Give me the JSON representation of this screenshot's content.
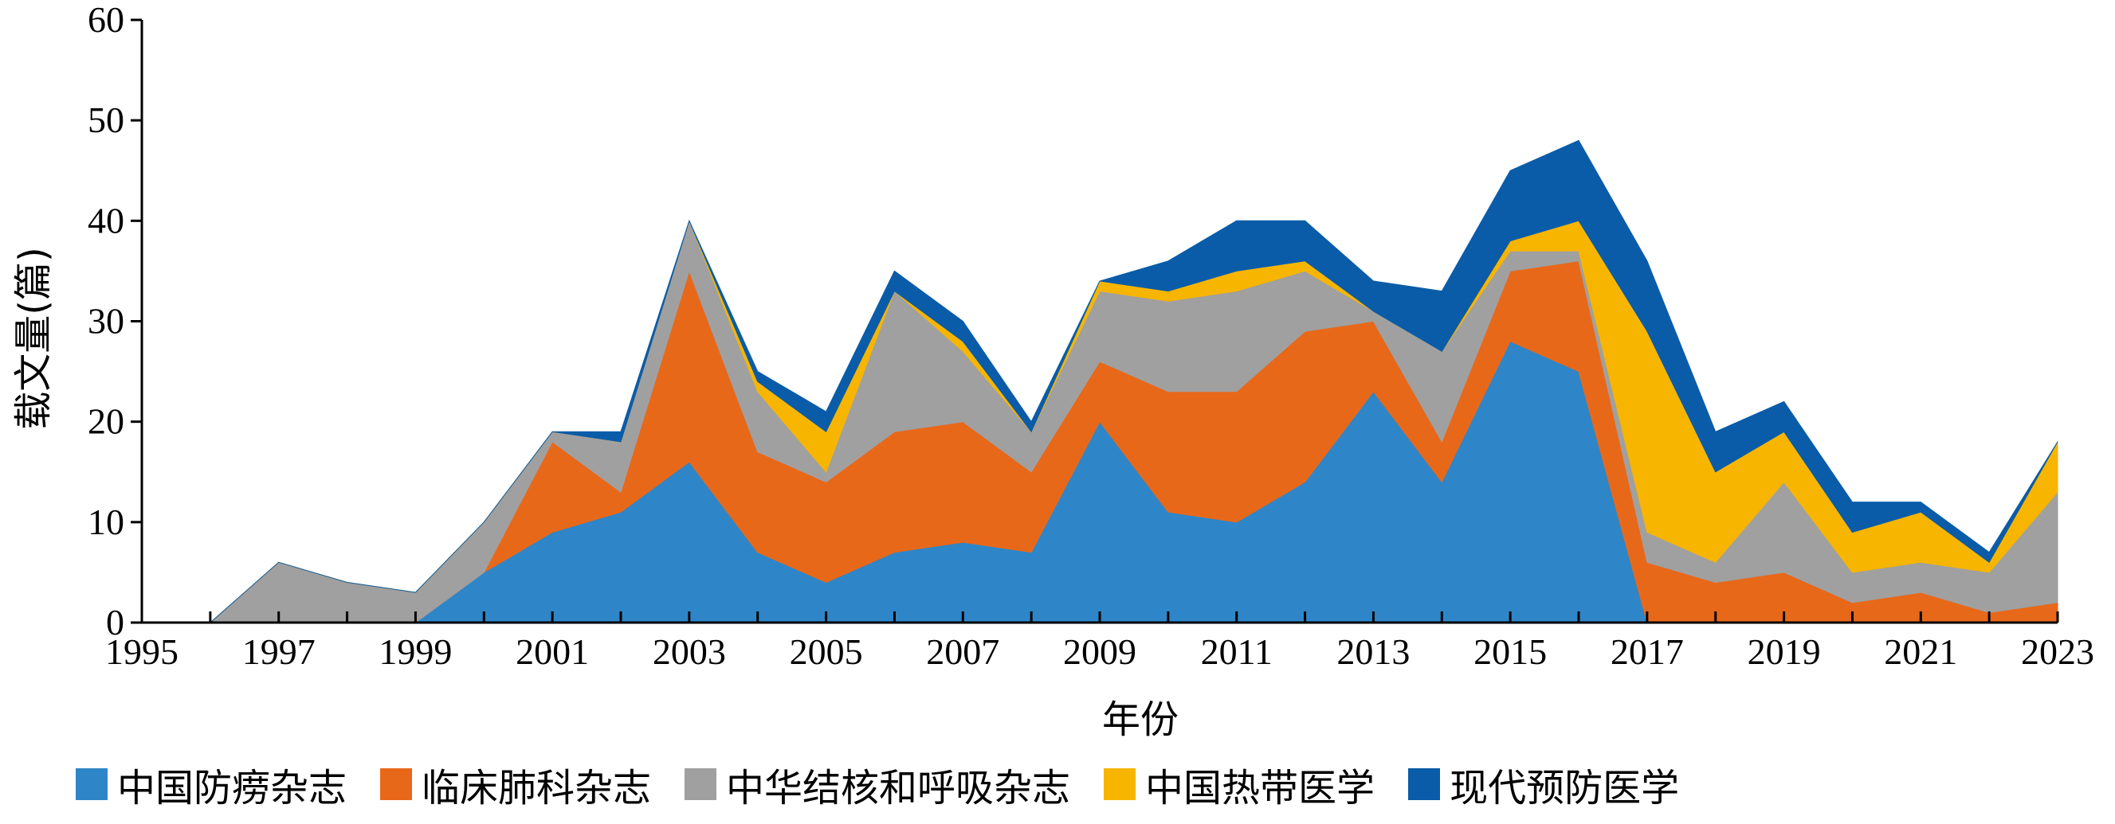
{
  "chart_data": {
    "type": "area",
    "stacked": true,
    "xlabel": "年份",
    "ylabel": "载文量(篇)",
    "ylim": [
      0,
      60
    ],
    "yticks": [
      0,
      10,
      20,
      30,
      40,
      50,
      60
    ],
    "xlim": [
      1995,
      2023
    ],
    "xticks": [
      1995,
      1997,
      1999,
      2001,
      2003,
      2005,
      2007,
      2009,
      2011,
      2013,
      2015,
      2017,
      2019,
      2021,
      2023
    ],
    "grid": false,
    "legend_position": "bottom",
    "x": [
      1996,
      1997,
      1998,
      1999,
      2000,
      2001,
      2002,
      2003,
      2004,
      2005,
      2006,
      2007,
      2008,
      2009,
      2010,
      2011,
      2012,
      2013,
      2014,
      2015,
      2016,
      2017,
      2018,
      2019,
      2020,
      2021,
      2022,
      2023
    ],
    "series": [
      {
        "name": "中国防痨杂志",
        "color": "#2e86c8",
        "values": [
          0,
          0,
          0,
          0,
          5,
          9,
          11,
          16,
          7,
          4,
          7,
          8,
          7,
          20,
          11,
          10,
          14,
          23,
          14,
          28,
          25,
          0,
          0,
          0,
          0,
          0,
          0,
          0
        ]
      },
      {
        "name": "临床肺科杂志",
        "color": "#e8681a",
        "values": [
          0,
          0,
          0,
          0,
          0,
          9,
          2,
          19,
          10,
          10,
          12,
          12,
          8,
          6,
          12,
          13,
          15,
          7,
          4,
          7,
          11,
          6,
          4,
          5,
          2,
          3,
          1,
          2
        ]
      },
      {
        "name": "中华结核和呼吸杂志",
        "color": "#a0a0a0",
        "values": [
          0,
          6,
          4,
          3,
          5,
          1,
          5,
          5,
          6,
          1,
          14,
          7,
          4,
          7,
          9,
          10,
          6,
          1,
          9,
          2,
          1,
          3,
          2,
          9,
          3,
          3,
          4,
          11
        ]
      },
      {
        "name": "中国热带医学",
        "color": "#f7b500",
        "values": [
          0,
          0,
          0,
          0,
          0,
          0,
          0,
          0,
          1,
          4,
          0,
          1,
          0,
          1,
          1,
          2,
          1,
          0,
          0,
          1,
          3,
          20,
          9,
          5,
          4,
          5,
          1,
          5
        ]
      },
      {
        "name": "现代预防医学",
        "color": "#0a5ca8",
        "values": [
          0,
          0,
          0,
          0,
          0,
          0,
          1,
          0,
          1,
          2,
          2,
          2,
          1,
          0,
          3,
          5,
          4,
          3,
          6,
          7,
          8,
          7,
          4,
          3,
          3,
          1,
          1,
          0
        ]
      }
    ]
  }
}
